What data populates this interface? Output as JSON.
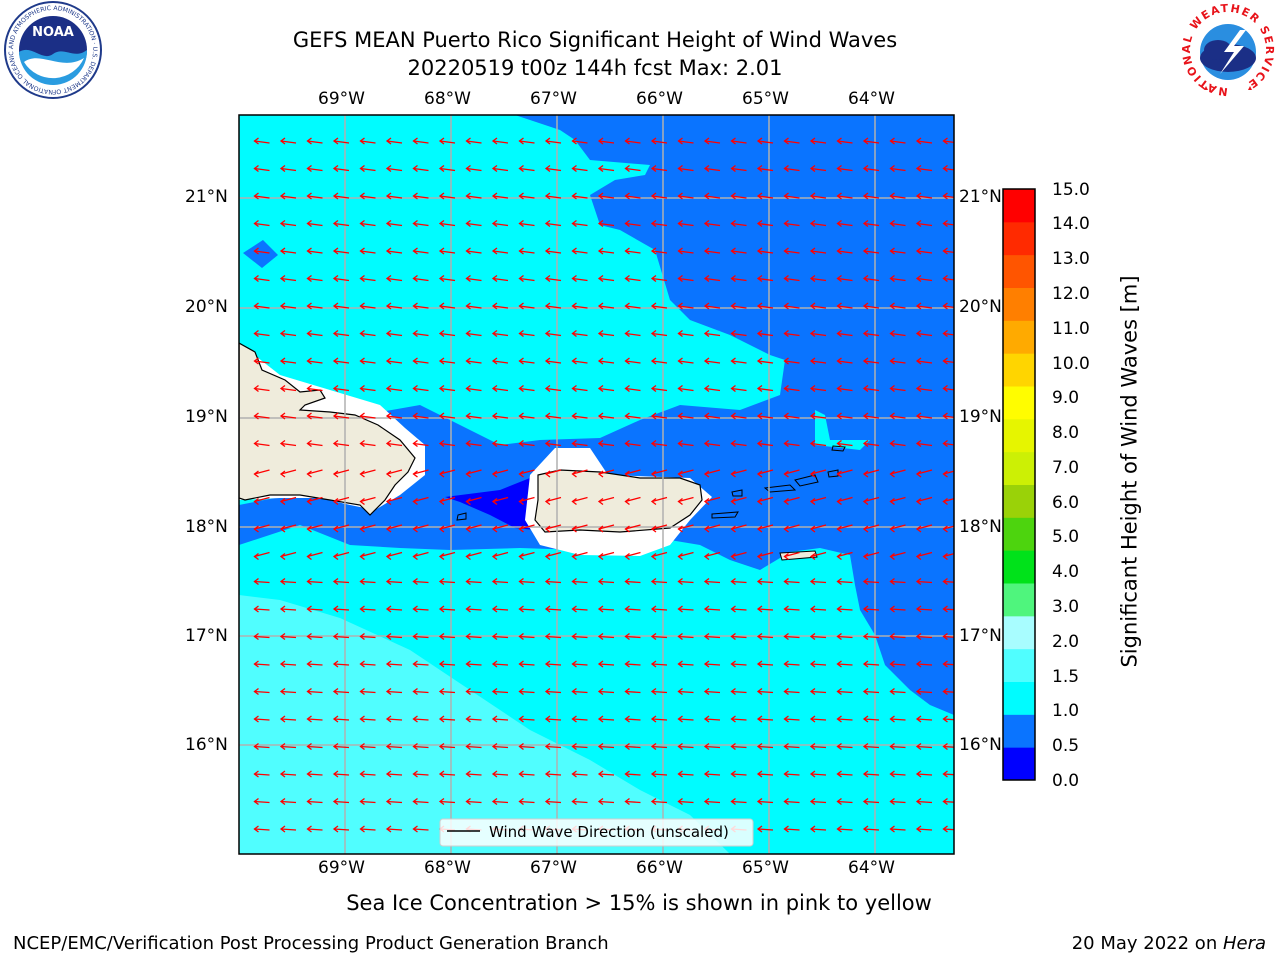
{
  "title": {
    "line1": "GEFS MEAN Puerto Rico Significant Height of Wind Waves",
    "line2": "20220519 t00z 144h fcst   Max: 2.01"
  },
  "logos": {
    "left_text": "NOAA",
    "left_ring_text": "NATIONAL OCEANIC AND ATMOSPHERIC ADMINISTRATION · U.S. DEPARTMENT OF COMMERCE",
    "right_ring_text": "NATIONAL WEATHER SERVICE"
  },
  "map": {
    "lon_ticks": [
      "69°W",
      "68°W",
      "67°W",
      "66°W",
      "65°W",
      "64°W"
    ],
    "lat_ticks": [
      "21°N",
      "20°N",
      "19°N",
      "18°N",
      "17°N",
      "16°N"
    ],
    "legend_label": "Wind Wave Direction (unscaled)",
    "colors": {
      "band_0_05": "#0000ff",
      "band_05_1": "#0a74ff",
      "band_1_15": "#00fcff",
      "band_15_2": "#50feff",
      "land": "#efecdc",
      "arrow": "#ff0000"
    }
  },
  "colorbar": {
    "label": "Significant Height of Wind Waves [m]",
    "ticks": [
      "15.0",
      "14.0",
      "13.0",
      "12.0",
      "11.0",
      "10.0",
      "9.0",
      "8.0",
      "7.0",
      "6.0",
      "5.0",
      "4.0",
      "3.0",
      "2.0",
      "1.5",
      "1.0",
      "0.5",
      "0.0"
    ],
    "colors_bottom_to_top": [
      "#0000ff",
      "#0a74ff",
      "#00fcff",
      "#50feff",
      "#a8fdff",
      "#4ff57d",
      "#00e21a",
      "#4dd40e",
      "#9ad208",
      "#ccf005",
      "#e6f500",
      "#fffd00",
      "#ffd500",
      "#ffaa00",
      "#ff7f00",
      "#ff5500",
      "#ff2a00",
      "#ff0000"
    ]
  },
  "footer": {
    "note": "Sea Ice Concentration > 15% is shown in pink to yellow",
    "left": "NCEP/EMC/Verification Post Processing Product Generation Branch",
    "right_prefix": "20 May 2022 on ",
    "right_italic": "Hera"
  }
}
